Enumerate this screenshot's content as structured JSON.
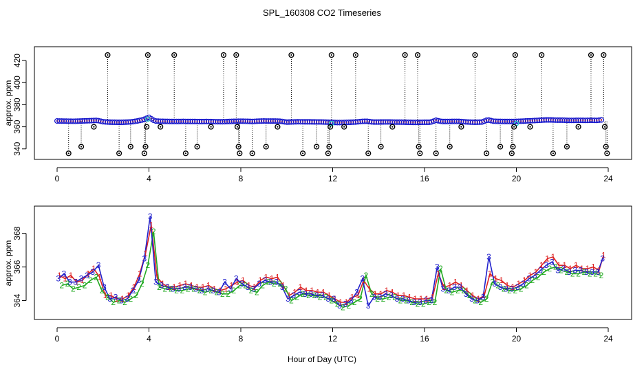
{
  "chart_data": [
    {
      "type": "scatter",
      "panel": "top",
      "title": "SPL_160308  CO2 Timeseries",
      "ylabel": "approx. ppm",
      "xlabel": "",
      "xlim": [
        0,
        24
      ],
      "ylim": [
        333,
        430
      ],
      "x_ticks": [
        "0",
        "4",
        "8",
        "12",
        "16",
        "20",
        "24"
      ],
      "y_ticks": [
        "340",
        "360",
        "380",
        "400",
        "420"
      ],
      "colors": {
        "main": "#1a1acc",
        "inner": "#cc2222",
        "highlight": "#22cccc",
        "outlier": "#000000"
      },
      "highlight_points": [
        {
          "x": 3.95,
          "y": 367
        },
        {
          "x": 11.95,
          "y": 363
        },
        {
          "x": 20.0,
          "y": 363
        }
      ],
      "outliers": [
        {
          "x": 0.5,
          "y": 336
        },
        {
          "x": 1.05,
          "y": 342
        },
        {
          "x": 1.6,
          "y": 360
        },
        {
          "x": 2.2,
          "y": 425
        },
        {
          "x": 2.7,
          "y": 336
        },
        {
          "x": 3.2,
          "y": 342
        },
        {
          "x": 3.8,
          "y": 336
        },
        {
          "x": 3.85,
          "y": 342
        },
        {
          "x": 3.9,
          "y": 360
        },
        {
          "x": 3.95,
          "y": 425
        },
        {
          "x": 4.5,
          "y": 360
        },
        {
          "x": 5.1,
          "y": 425
        },
        {
          "x": 5.6,
          "y": 336
        },
        {
          "x": 6.1,
          "y": 342
        },
        {
          "x": 6.7,
          "y": 360
        },
        {
          "x": 7.25,
          "y": 425
        },
        {
          "x": 7.8,
          "y": 425
        },
        {
          "x": 7.85,
          "y": 360
        },
        {
          "x": 7.9,
          "y": 342
        },
        {
          "x": 7.95,
          "y": 336
        },
        {
          "x": 8.5,
          "y": 336
        },
        {
          "x": 9.1,
          "y": 342
        },
        {
          "x": 9.6,
          "y": 360
        },
        {
          "x": 10.2,
          "y": 425
        },
        {
          "x": 10.7,
          "y": 336
        },
        {
          "x": 11.3,
          "y": 342
        },
        {
          "x": 11.8,
          "y": 336
        },
        {
          "x": 11.85,
          "y": 342
        },
        {
          "x": 11.9,
          "y": 360
        },
        {
          "x": 11.95,
          "y": 425
        },
        {
          "x": 12.5,
          "y": 360
        },
        {
          "x": 13.0,
          "y": 425
        },
        {
          "x": 13.55,
          "y": 336
        },
        {
          "x": 14.1,
          "y": 342
        },
        {
          "x": 14.6,
          "y": 360
        },
        {
          "x": 15.15,
          "y": 425
        },
        {
          "x": 15.7,
          "y": 425
        },
        {
          "x": 15.75,
          "y": 342
        },
        {
          "x": 15.8,
          "y": 336
        },
        {
          "x": 16.5,
          "y": 336
        },
        {
          "x": 17.1,
          "y": 342
        },
        {
          "x": 17.6,
          "y": 360
        },
        {
          "x": 18.2,
          "y": 425
        },
        {
          "x": 18.7,
          "y": 336
        },
        {
          "x": 19.3,
          "y": 342
        },
        {
          "x": 19.8,
          "y": 336
        },
        {
          "x": 19.85,
          "y": 342
        },
        {
          "x": 19.9,
          "y": 360
        },
        {
          "x": 19.95,
          "y": 425
        },
        {
          "x": 20.6,
          "y": 360
        },
        {
          "x": 21.1,
          "y": 425
        },
        {
          "x": 21.6,
          "y": 336
        },
        {
          "x": 22.2,
          "y": 342
        },
        {
          "x": 22.7,
          "y": 360
        },
        {
          "x": 23.25,
          "y": 425
        },
        {
          "x": 23.8,
          "y": 425
        },
        {
          "x": 23.85,
          "y": 360
        },
        {
          "x": 23.9,
          "y": 342
        },
        {
          "x": 23.95,
          "y": 336
        }
      ],
      "series": [
        {
          "name": "approx. ppm",
          "x": [
            0.0,
            0.25,
            0.5,
            0.75,
            1.0,
            1.25,
            1.5,
            1.75,
            2.0,
            2.25,
            2.5,
            2.75,
            3.0,
            3.25,
            3.5,
            3.75,
            4.0,
            4.25,
            4.5,
            4.75,
            5.0,
            5.25,
            5.5,
            5.75,
            6.0,
            6.25,
            6.5,
            6.75,
            7.0,
            7.25,
            7.5,
            7.75,
            8.0,
            8.25,
            8.5,
            8.75,
            9.0,
            9.25,
            9.5,
            9.75,
            10.0,
            10.25,
            10.5,
            10.75,
            11.0,
            11.25,
            11.5,
            11.75,
            12.0,
            12.25,
            12.5,
            12.75,
            13.0,
            13.25,
            13.5,
            13.75,
            14.0,
            14.25,
            14.5,
            14.75,
            15.0,
            15.25,
            15.5,
            15.75,
            16.0,
            16.25,
            16.5,
            16.75,
            17.0,
            17.25,
            17.5,
            17.75,
            18.0,
            18.25,
            18.5,
            18.75,
            19.0,
            19.25,
            19.5,
            19.75,
            20.0,
            20.25,
            20.5,
            20.75,
            21.0,
            21.25,
            21.5,
            21.75,
            22.0,
            22.25,
            22.5,
            22.75,
            23.0,
            23.25,
            23.5,
            23.75
          ],
          "values": [
            365.3,
            365.2,
            365.1,
            365.0,
            365.2,
            365.4,
            365.6,
            365.8,
            364.6,
            364.2,
            364.1,
            364.0,
            364.2,
            364.5,
            365.3,
            366.4,
            368.6,
            365.3,
            365.0,
            364.9,
            364.8,
            364.8,
            364.9,
            364.8,
            364.8,
            364.7,
            364.8,
            364.7,
            364.6,
            364.6,
            364.8,
            365.0,
            365.1,
            365.0,
            364.8,
            365.1,
            365.3,
            365.2,
            365.2,
            365.0,
            364.2,
            364.4,
            364.6,
            364.5,
            364.5,
            364.4,
            364.4,
            364.2,
            364.0,
            363.8,
            363.9,
            364.1,
            364.3,
            364.9,
            365.0,
            364.3,
            364.3,
            364.4,
            364.4,
            364.2,
            364.2,
            364.1,
            364.0,
            364.0,
            364.1,
            364.1,
            365.9,
            364.8,
            364.8,
            364.9,
            364.9,
            364.5,
            364.2,
            364.1,
            364.3,
            366.3,
            365.1,
            364.9,
            364.8,
            364.8,
            364.9,
            365.1,
            365.4,
            365.6,
            365.9,
            366.2,
            366.2,
            366.0,
            366.0,
            365.8,
            365.8,
            365.9,
            365.8,
            365.9,
            365.8,
            366.3
          ]
        }
      ]
    },
    {
      "type": "line",
      "panel": "bottom",
      "title": "",
      "ylabel": "approx. ppm",
      "xlabel": "Hour of Day (UTC)",
      "xlim": [
        0,
        24
      ],
      "ylim": [
        363.0,
        369.5
      ],
      "x_ticks": [
        "0",
        "4",
        "8",
        "12",
        "16",
        "20",
        "24"
      ],
      "y_ticks": [
        "364",
        "366",
        "368"
      ],
      "markers": [
        "1",
        "2",
        "3"
      ],
      "series": [
        {
          "name": "1",
          "color": "#dd2222",
          "x": [
            0.1,
            0.35,
            0.6,
            0.85,
            1.1,
            1.35,
            1.6,
            1.85,
            2.1,
            2.35,
            2.6,
            2.85,
            3.1,
            3.35,
            3.6,
            3.85,
            4.1,
            4.35,
            4.6,
            4.85,
            5.1,
            5.35,
            5.6,
            5.85,
            6.1,
            6.35,
            6.6,
            6.85,
            7.1,
            7.35,
            7.6,
            7.85,
            8.1,
            8.35,
            8.6,
            8.85,
            9.1,
            9.35,
            9.6,
            9.85,
            10.1,
            10.35,
            10.6,
            10.85,
            11.1,
            11.35,
            11.6,
            11.85,
            12.1,
            12.35,
            12.6,
            12.85,
            13.1,
            13.35,
            13.6,
            13.85,
            14.1,
            14.35,
            14.6,
            14.85,
            15.1,
            15.35,
            15.6,
            15.85,
            16.1,
            16.35,
            16.6,
            16.85,
            17.1,
            17.35,
            17.6,
            17.85,
            18.1,
            18.35,
            18.6,
            18.85,
            19.1,
            19.35,
            19.6,
            19.85,
            20.1,
            20.35,
            20.6,
            20.85,
            21.1,
            21.35,
            21.6,
            21.85,
            22.1,
            22.35,
            22.6,
            22.85,
            23.1,
            23.35,
            23.6,
            23.8
          ],
          "values": [
            365.5,
            365.3,
            365.5,
            365.1,
            365.2,
            365.6,
            365.9,
            365.4,
            364.3,
            364.3,
            364.1,
            364.1,
            364.3,
            364.8,
            365.6,
            366.8,
            368.5,
            365.4,
            365.0,
            364.8,
            364.8,
            364.9,
            365.0,
            364.9,
            364.8,
            364.8,
            364.9,
            364.7,
            364.6,
            364.7,
            364.9,
            365.1,
            365.2,
            364.9,
            364.8,
            365.2,
            365.4,
            365.3,
            365.4,
            364.9,
            364.3,
            364.5,
            364.8,
            364.6,
            364.6,
            364.5,
            364.5,
            364.3,
            364.1,
            363.9,
            363.9,
            364.2,
            364.3,
            365.2,
            364.7,
            364.4,
            364.4,
            364.6,
            364.5,
            364.3,
            364.3,
            364.2,
            364.1,
            364.1,
            364.1,
            364.2,
            365.6,
            364.8,
            364.9,
            365.1,
            364.9,
            364.6,
            364.3,
            364.1,
            364.3,
            365.6,
            365.3,
            365.2,
            364.9,
            364.8,
            365.0,
            365.2,
            365.5,
            365.7,
            366.1,
            366.5,
            366.6,
            366.1,
            366.1,
            365.9,
            366.1,
            365.9,
            365.9,
            366.0,
            365.8,
            366.7
          ]
        },
        {
          "name": "2",
          "color": "#22aa22",
          "x": [
            0.2,
            0.45,
            0.7,
            0.95,
            1.2,
            1.45,
            1.7,
            1.95,
            2.2,
            2.45,
            2.7,
            2.95,
            3.2,
            3.45,
            3.7,
            3.95,
            4.2,
            4.45,
            4.7,
            4.95,
            5.2,
            5.45,
            5.7,
            5.95,
            6.2,
            6.45,
            6.7,
            6.95,
            7.2,
            7.45,
            7.7,
            7.95,
            8.2,
            8.45,
            8.7,
            8.95,
            9.2,
            9.45,
            9.7,
            9.95,
            10.2,
            10.45,
            10.7,
            10.95,
            11.2,
            11.45,
            11.7,
            11.95,
            12.2,
            12.45,
            12.7,
            12.95,
            13.2,
            13.45,
            13.7,
            13.95,
            14.2,
            14.45,
            14.7,
            14.95,
            15.2,
            15.45,
            15.7,
            15.95,
            16.2,
            16.45,
            16.7,
            16.95,
            17.2,
            17.45,
            17.7,
            17.95,
            18.2,
            18.45,
            18.7,
            18.95,
            19.2,
            19.45,
            19.7,
            19.95,
            20.2,
            20.45,
            20.7,
            20.95,
            21.2,
            21.45,
            21.7,
            21.95,
            22.2,
            22.45,
            22.7,
            22.95,
            23.2,
            23.45,
            23.7
          ],
          "values": [
            364.9,
            365.0,
            364.7,
            364.8,
            364.9,
            365.2,
            365.4,
            364.6,
            364.2,
            363.9,
            364.0,
            363.9,
            364.1,
            364.3,
            365.0,
            366.1,
            368.1,
            364.8,
            364.7,
            364.7,
            364.6,
            364.6,
            364.7,
            364.7,
            364.6,
            364.5,
            364.6,
            364.5,
            364.4,
            364.4,
            364.6,
            364.9,
            364.9,
            364.6,
            364.5,
            364.9,
            365.1,
            365.0,
            365.0,
            364.7,
            364.0,
            364.2,
            364.4,
            364.3,
            364.3,
            364.2,
            364.2,
            364.0,
            363.8,
            363.6,
            363.7,
            363.9,
            364.1,
            365.5,
            364.4,
            364.1,
            364.1,
            364.2,
            364.2,
            364.0,
            364.0,
            363.9,
            363.8,
            363.8,
            363.9,
            363.9,
            365.9,
            364.6,
            364.5,
            364.6,
            364.6,
            364.3,
            364.0,
            363.9,
            364.1,
            365.1,
            364.9,
            364.7,
            364.6,
            364.6,
            364.7,
            364.9,
            365.2,
            365.4,
            365.7,
            365.9,
            366.0,
            365.8,
            365.7,
            365.6,
            365.6,
            365.7,
            365.6,
            365.6,
            365.5
          ]
        },
        {
          "name": "3",
          "color": "#2222cc",
          "x": [
            0.05,
            0.3,
            0.55,
            0.8,
            1.05,
            1.3,
            1.55,
            1.8,
            2.05,
            2.3,
            2.55,
            2.8,
            3.05,
            3.3,
            3.55,
            3.8,
            4.05,
            4.3,
            4.55,
            4.8,
            5.05,
            5.3,
            5.55,
            5.8,
            6.05,
            6.3,
            6.55,
            6.8,
            7.05,
            7.3,
            7.55,
            7.8,
            8.05,
            8.3,
            8.55,
            8.8,
            9.05,
            9.3,
            9.55,
            9.8,
            10.05,
            10.3,
            10.55,
            10.8,
            11.05,
            11.3,
            11.55,
            11.8,
            12.05,
            12.3,
            12.55,
            12.8,
            13.05,
            13.3,
            13.55,
            13.8,
            14.05,
            14.3,
            14.55,
            14.8,
            15.05,
            15.3,
            15.55,
            15.8,
            16.05,
            16.3,
            16.55,
            16.8,
            17.05,
            17.3,
            17.55,
            17.8,
            18.05,
            18.3,
            18.55,
            18.8,
            19.05,
            19.3,
            19.55,
            19.8,
            20.05,
            20.3,
            20.55,
            20.8,
            21.05,
            21.3,
            21.55,
            21.8,
            22.05,
            22.3,
            22.55,
            22.8,
            23.05,
            23.3,
            23.55,
            23.75
          ],
          "values": [
            365.3,
            365.6,
            365.1,
            365.1,
            365.3,
            365.5,
            365.7,
            366.1,
            364.8,
            364.1,
            364.2,
            364.0,
            364.1,
            364.6,
            365.2,
            366.5,
            369.0,
            365.1,
            364.9,
            364.8,
            364.7,
            364.7,
            364.8,
            364.8,
            364.7,
            364.6,
            364.7,
            364.6,
            364.5,
            365.1,
            364.7,
            365.3,
            365.0,
            364.8,
            364.7,
            365.0,
            365.2,
            365.1,
            365.1,
            364.8,
            364.1,
            364.3,
            364.5,
            364.4,
            364.4,
            364.3,
            364.3,
            364.1,
            364.1,
            363.7,
            363.8,
            364.0,
            364.5,
            365.3,
            363.7,
            364.2,
            364.2,
            364.4,
            364.3,
            364.1,
            364.1,
            364.0,
            363.9,
            363.9,
            364.0,
            364.0,
            366.0,
            364.7,
            364.6,
            364.8,
            364.8,
            364.4,
            364.1,
            364.0,
            364.2,
            366.6,
            365.0,
            364.8,
            364.7,
            364.7,
            364.8,
            365.0,
            365.3,
            365.5,
            365.8,
            366.1,
            366.3,
            365.8,
            365.9,
            365.7,
            365.8,
            365.8,
            365.7,
            365.7,
            365.7,
            366.5
          ]
        }
      ]
    }
  ]
}
